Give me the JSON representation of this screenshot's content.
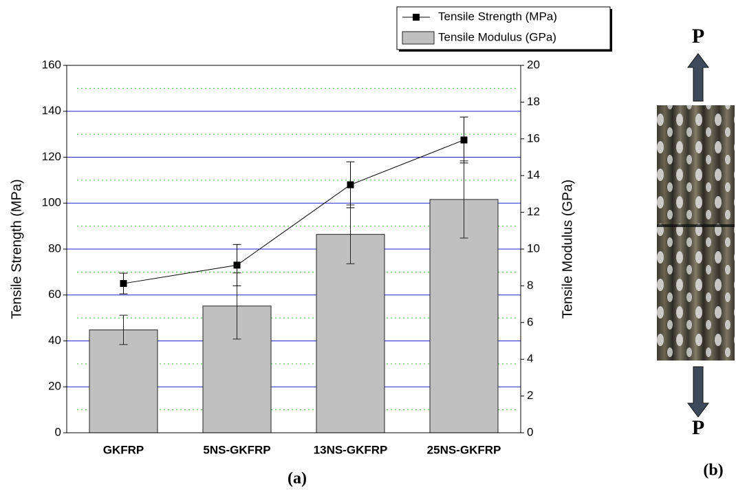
{
  "chart_data": {
    "type": "bar",
    "categories": [
      "GKFRP",
      "5NS-GKFRP",
      "13NS-GKFRP",
      "25NS-GKFRP"
    ],
    "y_label": "Tensile Strength (MPa)",
    "y2_label": "Tensile Modulus (GPa)",
    "ylim": [
      0,
      160
    ],
    "yticks": [
      0,
      20,
      40,
      60,
      80,
      100,
      120,
      140,
      160
    ],
    "y2lim": [
      0,
      20
    ],
    "y2ticks": [
      0,
      2,
      4,
      6,
      8,
      10,
      12,
      14,
      16,
      18,
      20
    ],
    "grid": true,
    "grid_color": "#2020d0",
    "minor_grid": true,
    "minor_grid_color": "#33cc33",
    "legend": "top-right",
    "series": [
      {
        "name": "Tensile Modulus (GPa)",
        "type": "bar",
        "axis": "y2",
        "color": "#c0c0c0",
        "values": [
          5.6,
          6.9,
          10.8,
          12.7
        ],
        "errors": [
          0.8,
          1.8,
          1.6,
          2.1
        ]
      },
      {
        "name": "Tensile Strength (MPa)",
        "type": "line",
        "color": "#000000",
        "values": [
          65,
          73,
          108,
          127.5
        ],
        "errors": [
          4.5,
          9,
          10,
          10
        ]
      }
    ],
    "caption": "(a)"
  },
  "panel_b": {
    "caption": "(b)",
    "load_top": "P",
    "load_bottom": "P"
  }
}
